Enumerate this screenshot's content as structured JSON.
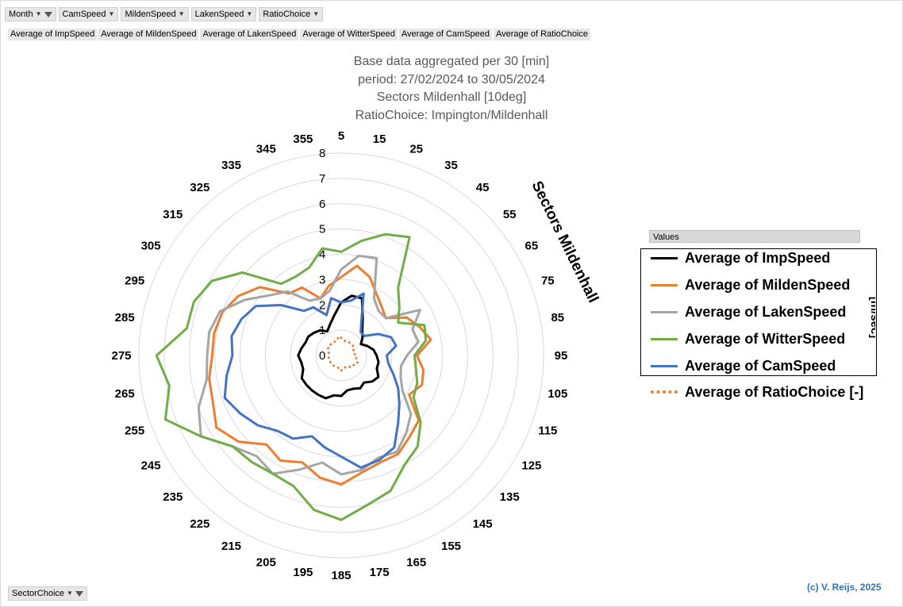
{
  "filters": {
    "month": "Month",
    "camspeed": "CamSpeed",
    "mildenspeed": "MildenSpeed",
    "lakenspeed": "LakenSpeed",
    "ratiochoice": "RatioChoice"
  },
  "value_fields": [
    "Average of ImpSpeed",
    "Average of MildenSpeed",
    "Average of LakenSpeed",
    "Average of WitterSpeed",
    "Average of CamSpeed",
    "Average of RatioChoice"
  ],
  "values_header": "Values",
  "sector_choice": "SectorChoice",
  "copyright": "(c) V. Reijs, 2025",
  "unit_label": "[m/sec]",
  "colors": {
    "imp": "#000000",
    "milden": "#ed7d31",
    "laken": "#a5a5a5",
    "witter": "#70ad47",
    "cam": "#4472c4",
    "ratio": "#ed7d31",
    "grid": "#d9d9d9",
    "copyright": "#2e75b6"
  },
  "chart_data": {
    "type": "radar",
    "title": [
      "Base data aggregated per 30 [min]",
      "period: 27/02/2024 to 30/05/2024",
      "Sectors Mildenhall [10deg]",
      "RatioChoice: Impington/Mildenhall"
    ],
    "axis_title": "Sectors Mildenhall",
    "unit": "[m/sec]",
    "rlim": [
      0,
      8
    ],
    "r_ticks": [
      "0",
      "1",
      "2",
      "3",
      "4",
      "5",
      "6",
      "7",
      "8"
    ],
    "categories": [
      "5",
      "15",
      "25",
      "35",
      "45",
      "55",
      "65",
      "75",
      "85",
      "95",
      "105",
      "115",
      "125",
      "135",
      "145",
      "155",
      "165",
      "175",
      "185",
      "195",
      "205",
      "215",
      "225",
      "235",
      "245",
      "255",
      "265",
      "275",
      "285",
      "295",
      "305",
      "315",
      "325",
      "335",
      "345",
      "355"
    ],
    "series": [
      {
        "name": "Average of ImpSpeed",
        "key": "imp",
        "style": "solid",
        "values": [
          2.1,
          2.4,
          2.4,
          1.7,
          1.3,
          1.1,
          0.9,
          1.1,
          1.3,
          1.4,
          1.5,
          1.5,
          1.7,
          1.6,
          1.4,
          1.5,
          1.4,
          1.4,
          1.6,
          1.6,
          1.8,
          1.8,
          1.8,
          1.8,
          1.8,
          1.6,
          1.6,
          1.7,
          1.6,
          1.5,
          1.5,
          1.4,
          1.3,
          1.1,
          1.3,
          1.6
        ]
      },
      {
        "name": "Average of MildenSpeed",
        "key": "milden",
        "style": "solid",
        "values": [
          3.1,
          3.6,
          3.3,
          2.8,
          2.5,
          2.3,
          3.0,
          3.3,
          3.6,
          3.0,
          3.3,
          3.4,
          3.1,
          4.0,
          4.2,
          4.5,
          4.5,
          4.7,
          5.1,
          4.9,
          4.5,
          4.8,
          4.6,
          5.3,
          5.7,
          5.4,
          5.3,
          5.1,
          5.1,
          5.0,
          4.7,
          4.2,
          3.2,
          3.1,
          2.4,
          2.8
        ]
      },
      {
        "name": "Average of LakenSpeed",
        "key": "laken",
        "style": "solid",
        "values": [
          3.4,
          4.0,
          4.1,
          2.6,
          2.3,
          2.3,
          3.6,
          3.0,
          3.1,
          2.6,
          2.4,
          2.5,
          2.8,
          3.6,
          4.0,
          4.4,
          4.3,
          4.6,
          4.7,
          4.3,
          4.8,
          5.4,
          5.2,
          5.6,
          6.4,
          6.0,
          5.4,
          5.3,
          5.3,
          5.1,
          4.4,
          3.7,
          3.3,
          2.5,
          2.4,
          2.6
        ]
      },
      {
        "name": "Average of WitterSpeed",
        "key": "witter",
        "style": "solid",
        "values": [
          4.1,
          4.6,
          5.1,
          5.4,
          3.5,
          3.0,
          2.6,
          3.5,
          3.4,
          2.9,
          3.0,
          3.2,
          3.3,
          4.1,
          4.7,
          5.0,
          5.7,
          6.0,
          6.5,
          6.2,
          5.5,
          5.4,
          5.5,
          5.6,
          6.4,
          7.4,
          6.9,
          7.3,
          6.2,
          6.2,
          5.9,
          5.1,
          3.7,
          3.6,
          3.7,
          4.3
        ]
      },
      {
        "name": "Average of CamSpeed",
        "key": "cam",
        "style": "solid",
        "values": [
          2.1,
          2.2,
          2.6,
          1.6,
          1.2,
          1.2,
          1.7,
          2.1,
          2.2,
          1.8,
          1.9,
          2.2,
          2.6,
          3.0,
          3.5,
          4.2,
          4.4,
          4.5,
          4.0,
          3.7,
          3.4,
          3.8,
          3.9,
          4.3,
          4.6,
          4.9,
          4.6,
          4.3,
          4.4,
          4.2,
          3.9,
          3.1,
          2.3,
          2.2,
          1.7,
          2.3
        ]
      },
      {
        "name": "Average of RatioChoice [-]",
        "key": "ratio",
        "style": "dotted",
        "values": [
          0.7,
          0.6,
          0.6,
          0.6,
          0.6,
          0.6,
          0.6,
          0.5,
          0.5,
          0.6,
          0.6,
          0.7,
          0.7,
          0.6,
          0.6,
          0.5,
          0.5,
          0.5,
          0.6,
          0.5,
          0.5,
          0.5,
          0.5,
          0.5,
          0.5,
          0.5,
          0.5,
          0.5,
          0.5,
          0.5,
          0.6,
          0.6,
          0.6,
          0.6,
          0.6,
          0.7
        ]
      }
    ]
  }
}
